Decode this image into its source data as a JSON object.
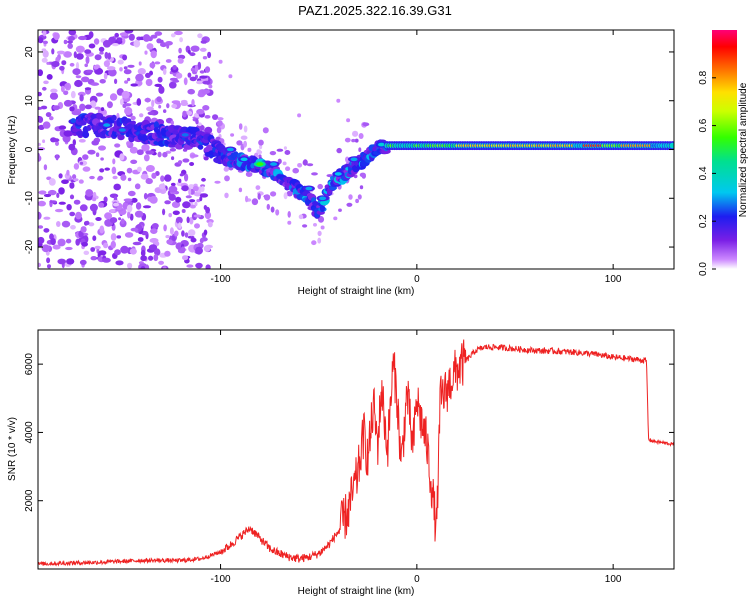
{
  "title": "PAZ1.2025.322.16.39.G31",
  "chart_data": [
    {
      "type": "heatmap",
      "name": "spectrogram",
      "xlabel": "Height of straight line (km)",
      "ylabel": "Frequency (Hz)",
      "xlim": [
        -193,
        131
      ],
      "ylim": [
        -24.5,
        24.5
      ],
      "xticks": [
        -100,
        0,
        100
      ],
      "xtick_labels": [
        "-100",
        "0",
        "100"
      ],
      "yticks": [
        -20,
        -10,
        0,
        10,
        20
      ],
      "ytick_labels": [
        "-20",
        "-10",
        "0",
        "10",
        "20"
      ],
      "colorbar": {
        "label": "Normalized spectral amplitude",
        "ticks": [
          0,
          0.2,
          0.4,
          0.6,
          0.8
        ],
        "tick_labels": [
          "0.0",
          "0.2",
          "0.4",
          "0.6",
          "0.8"
        ],
        "range": [
          0,
          1
        ]
      },
      "ridge": {
        "description_points_km_hz": [
          [
            -160,
            5
          ],
          [
            -130,
            3
          ],
          [
            -110,
            2
          ],
          [
            -95,
            -2
          ],
          [
            -85,
            -3
          ],
          [
            -75,
            -4
          ],
          [
            -65,
            -7
          ],
          [
            -55,
            -10
          ],
          [
            -50,
            -13
          ],
          [
            -45,
            -8
          ],
          [
            -40,
            -6
          ],
          [
            -30,
            -3
          ],
          [
            -20,
            0.5
          ],
          [
            0,
            0.8
          ],
          [
            130,
            0.8
          ]
        ],
        "strong_band_hz": 0.8,
        "strong_band_range_km": [
          -15,
          131
        ]
      }
    },
    {
      "type": "line",
      "name": "snr",
      "xlabel": "Height of straight line (km)",
      "ylabel": "SNR (10 * v/v)",
      "xlim": [
        -193,
        131
      ],
      "ylim": [
        0,
        7000
      ],
      "xticks": [
        -100,
        0,
        100
      ],
      "xtick_labels": [
        "-100",
        "0",
        "100"
      ],
      "yticks": [
        2000,
        4000,
        6000
      ],
      "ytick_labels": [
        "2000",
        "4000",
        "6000"
      ],
      "series": [
        {
          "name": "SNR",
          "color": "#ee2222",
          "x": [
            -193,
            -180,
            -160,
            -140,
            -120,
            -110,
            -100,
            -95,
            -90,
            -85,
            -80,
            -75,
            -70,
            -65,
            -60,
            -55,
            -50,
            -45,
            -40,
            -35,
            -30,
            -27,
            -25,
            -22,
            -20,
            -18,
            -15,
            -12,
            -10,
            -8,
            -5,
            -2,
            0,
            2,
            5,
            8,
            10,
            12,
            15,
            18,
            20,
            25,
            30,
            35,
            40,
            50,
            60,
            70,
            80,
            90,
            100,
            110,
            117,
            118,
            120,
            125,
            131
          ],
          "y": [
            150,
            170,
            200,
            250,
            250,
            300,
            500,
            700,
            950,
            1200,
            900,
            600,
            450,
            350,
            300,
            350,
            450,
            700,
            1100,
            1700,
            2800,
            4000,
            3200,
            4800,
            3600,
            5300,
            3500,
            6000,
            5000,
            3000,
            5200,
            3500,
            5000,
            4400,
            3700,
            2200,
            1100,
            5000,
            5200,
            5600,
            5800,
            6100,
            6400,
            6500,
            6500,
            6450,
            6400,
            6380,
            6350,
            6300,
            6200,
            6150,
            6100,
            3800,
            3750,
            3700,
            3650
          ]
        }
      ]
    }
  ]
}
